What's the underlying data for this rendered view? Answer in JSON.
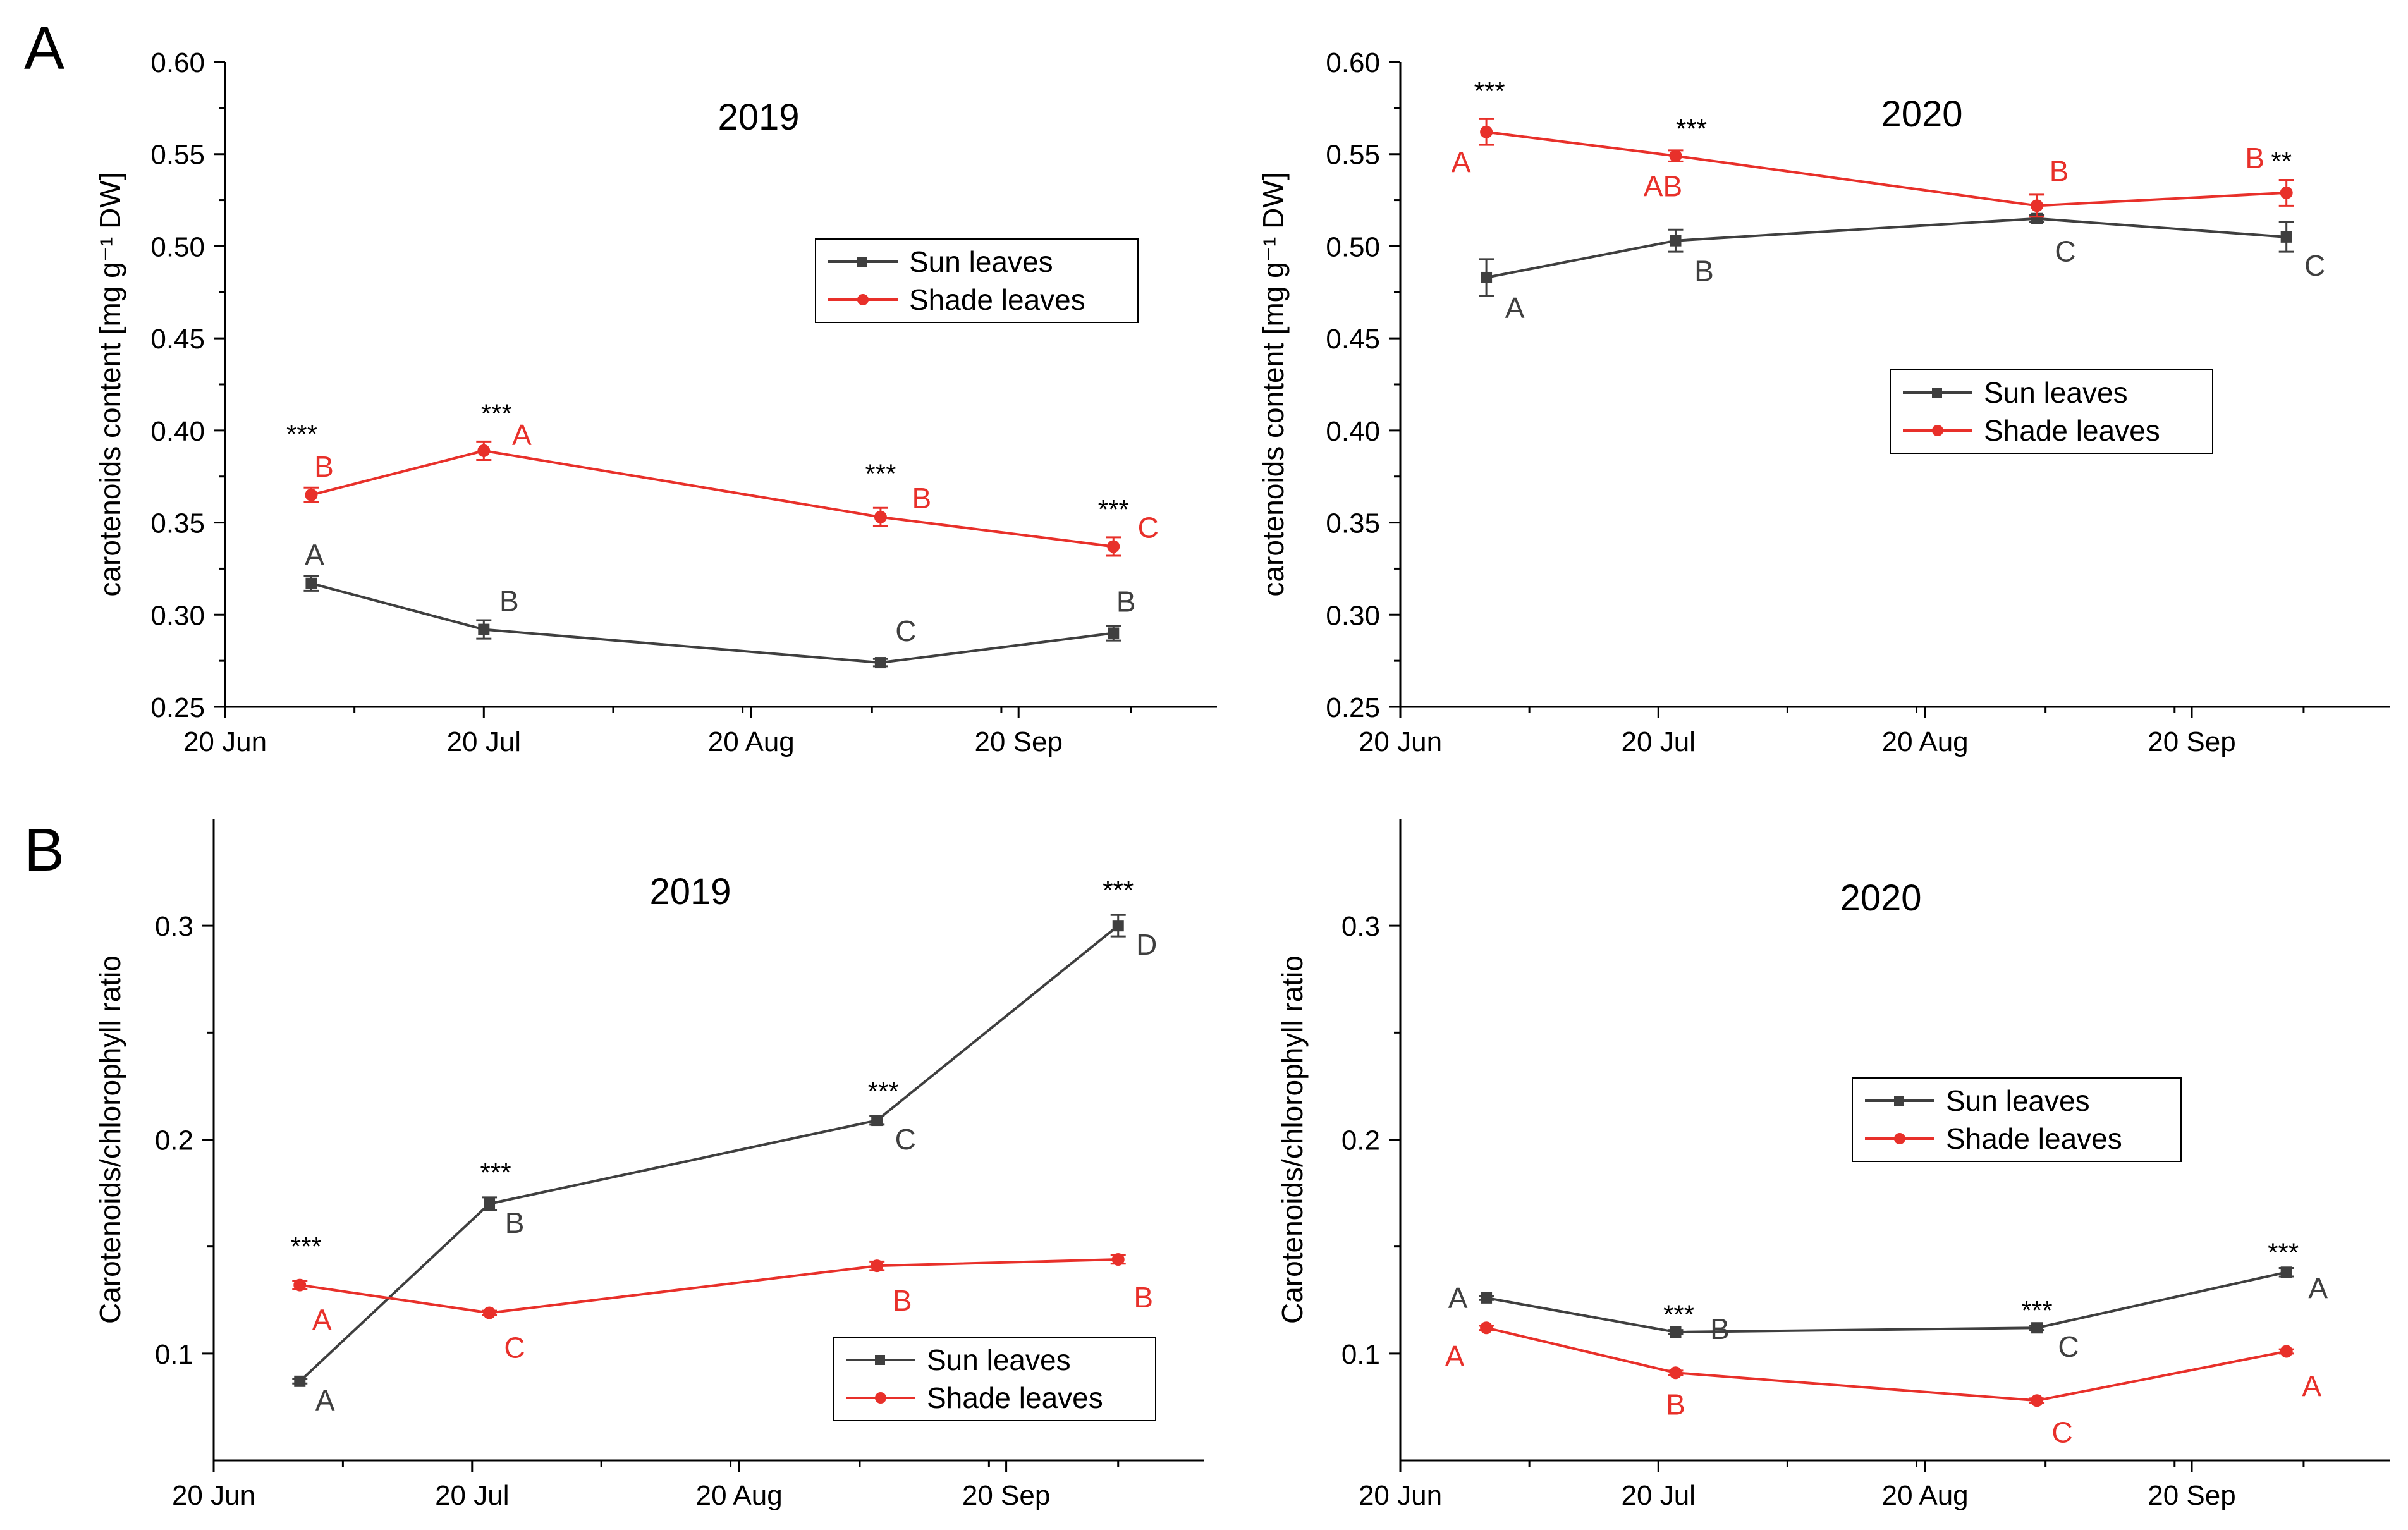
{
  "panels": [
    {
      "label": "A"
    },
    {
      "label": "B"
    }
  ],
  "colors": {
    "sun": "#3f3f3f",
    "shade": "#e8302a",
    "axis": "#000000"
  },
  "chart_data": [
    {
      "id": "A2019",
      "panel": "A",
      "type": "line",
      "title": "2019",
      "ylabel": "carotenoids content [mg g⁻¹ DW]",
      "xlabel": "",
      "ylim": [
        0.25,
        0.6
      ],
      "yticks": [
        0.25,
        0.3,
        0.35,
        0.4,
        0.45,
        0.5,
        0.55,
        0.6
      ],
      "ytick_labels": [
        "0.25",
        "0.30",
        "0.35",
        "0.40",
        "0.45",
        "0.50",
        "0.55",
        "0.60"
      ],
      "xlim": [
        0,
        115
      ],
      "xticks": [
        0,
        30,
        61,
        92
      ],
      "xtick_labels": [
        "20 Jun",
        "20 Jul",
        "20 Aug",
        "20 Sep"
      ],
      "legend": "upper-right",
      "series": [
        {
          "name": "Sun leaves",
          "marker": "square",
          "color_key": "sun",
          "x": [
            10,
            30,
            76,
            103
          ],
          "y": [
            0.317,
            0.292,
            0.274,
            0.29
          ],
          "err": [
            0.004,
            0.005,
            0.002,
            0.004
          ],
          "labels": [
            "A",
            "B",
            "C",
            "B"
          ]
        },
        {
          "name": "Shade leaves",
          "marker": "circle",
          "color_key": "shade",
          "x": [
            10,
            30,
            76,
            103
          ],
          "y": [
            0.365,
            0.389,
            0.353,
            0.337
          ],
          "err": [
            0.004,
            0.005,
            0.005,
            0.005
          ],
          "labels": [
            "B",
            "A",
            "B",
            "C"
          ]
        }
      ],
      "significance": [
        "***",
        "***",
        "***",
        "***"
      ]
    },
    {
      "id": "A2020",
      "panel": "A",
      "type": "line",
      "title": "2020",
      "ylabel": "carotenoids content [mg g⁻¹ DW]",
      "xlabel": "",
      "ylim": [
        0.25,
        0.6
      ],
      "yticks": [
        0.25,
        0.3,
        0.35,
        0.4,
        0.45,
        0.5,
        0.55,
        0.6
      ],
      "ytick_labels": [
        "0.25",
        "0.30",
        "0.35",
        "0.40",
        "0.45",
        "0.50",
        "0.55",
        "0.60"
      ],
      "xlim": [
        0,
        115
      ],
      "xticks": [
        0,
        30,
        61,
        92
      ],
      "xtick_labels": [
        "20 Jun",
        "20 Jul",
        "20 Aug",
        "20 Sep"
      ],
      "legend": "center-right",
      "series": [
        {
          "name": "Sun leaves",
          "marker": "square",
          "color_key": "sun",
          "x": [
            10,
            32,
            74,
            103
          ],
          "y": [
            0.483,
            0.503,
            0.515,
            0.505
          ],
          "err": [
            0.01,
            0.006,
            0.002,
            0.008
          ],
          "labels": [
            "A",
            "B",
            "C",
            "C"
          ]
        },
        {
          "name": "Shade leaves",
          "marker": "circle",
          "color_key": "shade",
          "x": [
            10,
            32,
            74,
            103
          ],
          "y": [
            0.562,
            0.549,
            0.522,
            0.529
          ],
          "err": [
            0.007,
            0.003,
            0.006,
            0.007
          ],
          "labels": [
            "A",
            "AB",
            "B",
            "B"
          ]
        }
      ],
      "significance": [
        "***",
        "***",
        "",
        "**"
      ]
    },
    {
      "id": "B2019",
      "panel": "B",
      "type": "line",
      "title": "2019",
      "ylabel": "Carotenoids/chlorophyll ratio",
      "xlabel": "",
      "ylim": [
        0.05,
        0.35
      ],
      "yticks": [
        0.1,
        0.2,
        0.3
      ],
      "ytick_labels": [
        "0.1",
        "0.2",
        "0.3"
      ],
      "xlim": [
        0,
        115
      ],
      "xticks": [
        0,
        30,
        61,
        92
      ],
      "xtick_labels": [
        "20 Jun",
        "20 Jul",
        "20 Aug",
        "20 Sep"
      ],
      "legend": "lower-right",
      "series": [
        {
          "name": "Sun leaves",
          "marker": "square",
          "color_key": "sun",
          "x": [
            10,
            32,
            77,
            105
          ],
          "y": [
            0.087,
            0.17,
            0.209,
            0.3
          ],
          "err": [
            0.001,
            0.003,
            0.002,
            0.005
          ],
          "labels": [
            "A",
            "B",
            "C",
            "D"
          ]
        },
        {
          "name": "Shade leaves",
          "marker": "circle",
          "color_key": "shade",
          "x": [
            10,
            32,
            77,
            105
          ],
          "y": [
            0.132,
            0.119,
            0.141,
            0.144
          ],
          "err": [
            0.002,
            0.001,
            0.002,
            0.002
          ],
          "labels": [
            "A",
            "C",
            "B",
            "B"
          ]
        }
      ],
      "significance": [
        "***",
        "***",
        "***",
        "***"
      ]
    },
    {
      "id": "B2020",
      "panel": "B",
      "type": "line",
      "title": "2020",
      "ylabel": "Carotenoids/chlorophyll ratio",
      "xlabel": "",
      "ylim": [
        0.05,
        0.35
      ],
      "yticks": [
        0.1,
        0.2,
        0.3
      ],
      "ytick_labels": [
        "0.1",
        "0.2",
        "0.3"
      ],
      "xlim": [
        0,
        115
      ],
      "xticks": [
        0,
        30,
        61,
        92
      ],
      "xtick_labels": [
        "20 Jun",
        "20 Jul",
        "20 Aug",
        "20 Sep"
      ],
      "legend": "center-right",
      "series": [
        {
          "name": "Sun leaves",
          "marker": "square",
          "color_key": "sun",
          "x": [
            10,
            32,
            74,
            103
          ],
          "y": [
            0.126,
            0.11,
            0.112,
            0.138
          ],
          "err": [
            0.001,
            0.001,
            0.001,
            0.002
          ],
          "labels": [
            "A",
            "B",
            "C",
            "A"
          ]
        },
        {
          "name": "Shade leaves",
          "marker": "circle",
          "color_key": "shade",
          "x": [
            10,
            32,
            74,
            103
          ],
          "y": [
            0.112,
            0.091,
            0.078,
            0.101
          ],
          "err": [
            0.001,
            0.001,
            0.001,
            0.001
          ],
          "labels": [
            "A",
            "B",
            "C",
            "A"
          ]
        }
      ],
      "significance": [
        "",
        "***",
        "***",
        "***"
      ]
    }
  ]
}
